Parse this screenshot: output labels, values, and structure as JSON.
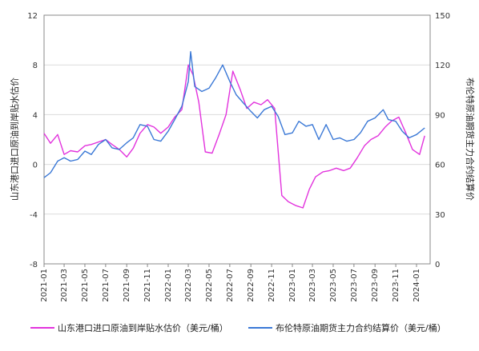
{
  "chart_data": {
    "type": "line",
    "title": "",
    "ylabel_left": "山东港口进口原油到岸贴水估价",
    "ylabel_right": "布伦特原油期货主力合约结算价",
    "ylim_left": [
      -8,
      12
    ],
    "yticks_left": [
      -8,
      -4,
      0,
      4,
      8,
      12
    ],
    "ylim_right": [
      0,
      150
    ],
    "yticks_right": [
      0,
      30,
      60,
      90,
      120,
      150
    ],
    "x_ticks": [
      "2021-01",
      "2021-03",
      "2021-05",
      "2021-07",
      "2021-09",
      "2021-11",
      "2022-01",
      "2022-03",
      "2022-05",
      "2022-07",
      "2022-09",
      "2022-11",
      "2023-01",
      "2023-03",
      "2023-05",
      "2023-07",
      "2023-09",
      "2023-11",
      "2024-01"
    ],
    "grid": "horizontal",
    "legend_position": "bottom",
    "series": [
      {
        "name": "山东港口进口原油到岸贴水估价（美元/桶）",
        "axis": "left",
        "color": "#e233dd",
        "x": [
          "2021-01-01",
          "2021-01-20",
          "2021-02-10",
          "2021-03-01",
          "2021-03-20",
          "2021-04-10",
          "2021-05-01",
          "2021-05-20",
          "2021-06-10",
          "2021-07-01",
          "2021-07-20",
          "2021-08-10",
          "2021-09-01",
          "2021-09-20",
          "2021-10-10",
          "2021-11-01",
          "2021-11-20",
          "2021-12-10",
          "2022-01-01",
          "2022-01-20",
          "2022-02-10",
          "2022-03-01",
          "2022-03-15",
          "2022-04-01",
          "2022-04-20",
          "2022-05-10",
          "2022-06-01",
          "2022-06-20",
          "2022-07-10",
          "2022-08-01",
          "2022-08-20",
          "2022-09-10",
          "2022-10-01",
          "2022-10-20",
          "2022-11-10",
          "2022-12-01",
          "2022-12-20",
          "2023-01-10",
          "2023-02-01",
          "2023-02-20",
          "2023-03-10",
          "2023-04-01",
          "2023-04-20",
          "2023-05-10",
          "2023-06-01",
          "2023-06-20",
          "2023-07-10",
          "2023-08-01",
          "2023-08-20",
          "2023-09-10",
          "2023-10-01",
          "2023-10-20",
          "2023-11-10",
          "2023-12-01",
          "2023-12-20",
          "2024-01-10",
          "2024-01-25"
        ],
        "values": [
          2.5,
          1.7,
          2.4,
          0.8,
          1.1,
          1.0,
          1.5,
          1.6,
          1.8,
          2.0,
          1.6,
          1.2,
          0.6,
          1.3,
          2.5,
          3.2,
          3.0,
          2.5,
          3.0,
          3.8,
          4.4,
          8.0,
          7.2,
          5.0,
          1.0,
          0.9,
          2.5,
          4.0,
          7.5,
          6.0,
          4.5,
          5.0,
          4.8,
          5.2,
          4.5,
          -2.5,
          -3.0,
          -3.3,
          -3.5,
          -2.0,
          -1.0,
          -0.6,
          -0.5,
          -0.3,
          -0.5,
          -0.3,
          0.5,
          1.5,
          2.0,
          2.3,
          3.0,
          3.5,
          3.8,
          2.5,
          1.2,
          0.8,
          2.3
        ]
      },
      {
        "name": "布伦特原油期货主力合约结算价（美元/桶）",
        "axis": "right",
        "color": "#3a78d6",
        "x": [
          "2021-01-01",
          "2021-01-20",
          "2021-02-10",
          "2021-03-01",
          "2021-03-20",
          "2021-04-10",
          "2021-05-01",
          "2021-05-20",
          "2021-06-10",
          "2021-07-01",
          "2021-07-20",
          "2021-08-10",
          "2021-09-01",
          "2021-09-20",
          "2021-10-10",
          "2021-11-01",
          "2021-11-20",
          "2021-12-10",
          "2022-01-01",
          "2022-01-20",
          "2022-02-10",
          "2022-03-01",
          "2022-03-08",
          "2022-03-20",
          "2022-04-10",
          "2022-05-01",
          "2022-05-20",
          "2022-06-10",
          "2022-07-01",
          "2022-07-20",
          "2022-08-10",
          "2022-09-01",
          "2022-09-20",
          "2022-10-10",
          "2022-11-01",
          "2022-11-20",
          "2022-12-10",
          "2023-01-01",
          "2023-01-20",
          "2023-02-10",
          "2023-03-01",
          "2023-03-20",
          "2023-04-10",
          "2023-05-01",
          "2023-05-20",
          "2023-06-10",
          "2023-07-01",
          "2023-07-20",
          "2023-08-10",
          "2023-09-01",
          "2023-09-25",
          "2023-10-10",
          "2023-11-01",
          "2023-11-20",
          "2023-12-10",
          "2024-01-01",
          "2024-01-25"
        ],
        "values": [
          52,
          55,
          62,
          64,
          62,
          63,
          68,
          66,
          72,
          75,
          70,
          69,
          73,
          76,
          84,
          83,
          75,
          74,
          80,
          87,
          95,
          110,
          128,
          107,
          104,
          106,
          112,
          120,
          110,
          102,
          97,
          92,
          88,
          93,
          95,
          89,
          78,
          79,
          86,
          83,
          84,
          75,
          84,
          75,
          76,
          74,
          75,
          79,
          86,
          88,
          93,
          87,
          86,
          80,
          76,
          78,
          82
        ]
      }
    ]
  }
}
